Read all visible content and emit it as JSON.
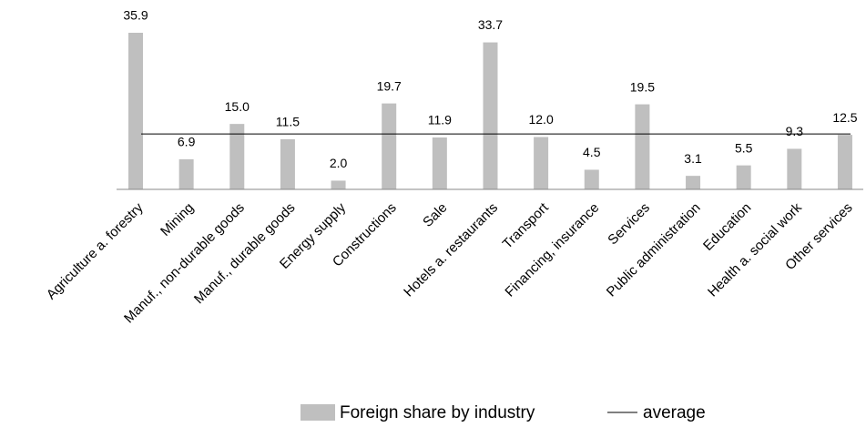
{
  "chart_data": {
    "type": "bar",
    "categories": [
      "Agriculture a. forestry",
      "Mining",
      "Manuf., non-durable goods",
      "Manuf., durable goods",
      "Energy supply",
      "Constructions",
      "Sale",
      "Hotels a. restaurants",
      "Transport",
      "Financing, insurance",
      "Services",
      "Public administration",
      "Education",
      "Health a. social work",
      "Other services"
    ],
    "series": [
      {
        "name": "Foreign share by industry",
        "color": "#bfbfbf",
        "values": [
          35.9,
          6.9,
          15.0,
          11.5,
          2.0,
          19.7,
          11.9,
          33.7,
          12.0,
          4.5,
          19.5,
          3.1,
          5.5,
          9.3,
          12.5
        ],
        "value_labels": [
          "35.9",
          "6.9",
          "15.0",
          "11.5",
          "2.0",
          "19.7",
          "11.9",
          "33.7",
          "12.0",
          "4.5",
          "19.5",
          "3.1",
          "5.5",
          "9.3",
          "12.5"
        ]
      },
      {
        "name": "average",
        "color": "#000000",
        "type": "line",
        "value": 12.7
      }
    ],
    "legend": "bottom"
  }
}
